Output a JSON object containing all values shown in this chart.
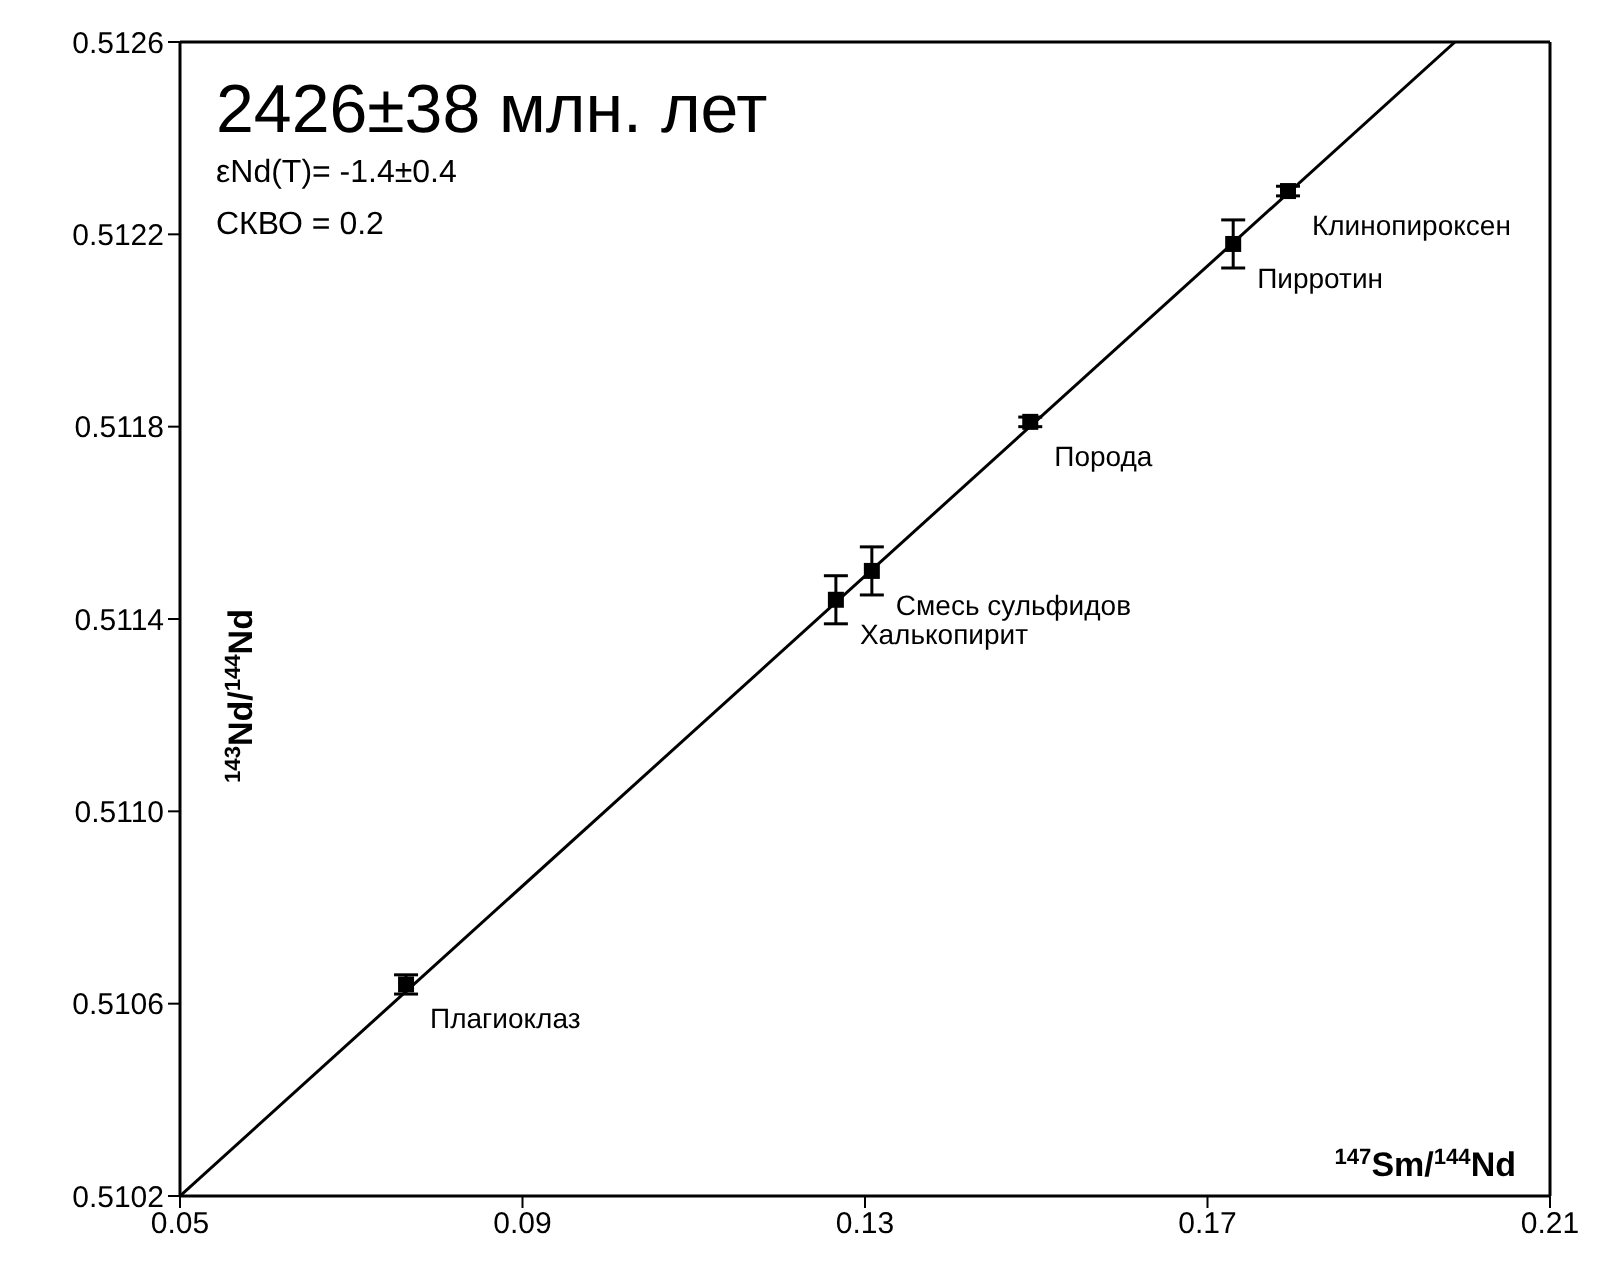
{
  "chart_data": {
    "type": "scatter",
    "title": "2426±38 млн. лет",
    "xlabel": "$^{147}$Sm/$^{144}$Nd",
    "ylabel": "$^{143}$Nd/$^{144}$Nd",
    "xlim": [
      0.05,
      0.21
    ],
    "xticks": [
      0.05,
      0.09,
      0.13,
      0.17,
      0.21
    ],
    "ylim": [
      0.5102,
      0.5126
    ],
    "yticks": [
      {
        "value": 0.5102,
        "label": "0.5102"
      },
      {
        "value": 0.5106,
        "label": "0.5106"
      },
      {
        "value": 0.511,
        "label": "0.5110"
      },
      {
        "value": 0.5114,
        "label": "0.5114"
      },
      {
        "value": 0.5118,
        "label": "0.5118"
      },
      {
        "value": 0.5122,
        "label": "0.5122"
      },
      {
        "value": 0.5126,
        "label": "0.5126"
      }
    ],
    "series": [
      {
        "color": "#000000",
        "marker": "square",
        "x": [
          0.0764,
          0.1266,
          0.1308,
          0.1493,
          0.173,
          0.1794
        ],
        "values": [
          0.51064,
          0.51144,
          0.5115,
          0.51181,
          0.51218,
          0.51229
        ],
        "errors": [
          2e-05,
          5e-05,
          5e-05,
          1e-05,
          5e-05,
          1e-05
        ]
      },
      {
        "type": "line",
        "marker": "none",
        "color": "#000000",
        "x": [
          0.05,
          0.1989
        ],
        "values": [
          0.5102,
          0.5126
        ]
      }
    ],
    "annotations": [
      "εNd(T)= -1.4±0.4",
      "СКВО = 0.2",
      {
        "text": "Плагиоклаз",
        "x": 0.0764,
        "y": 0.51064
      },
      {
        "text": "Халькопирит",
        "x": 0.1266,
        "y": 0.51144
      },
      {
        "text": "Смесь сульфидов",
        "x": 0.1308,
        "y": 0.5115
      },
      {
        "text": "Порода",
        "x": 0.1493,
        "y": 0.51181
      },
      {
        "text": "Пирротин",
        "x": 0.173,
        "y": 0.51218
      },
      {
        "text": "Клинопироксен",
        "x": 0.1794,
        "y": 0.51229
      }
    ]
  }
}
